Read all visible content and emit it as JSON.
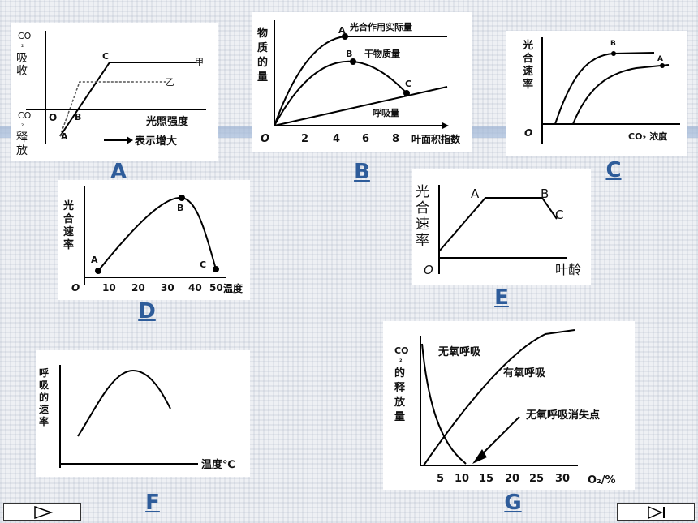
{
  "A": {
    "caption": "A",
    "y_label_top": [
      "CO",
      "₂",
      "吸",
      "收"
    ],
    "y_label_bottom": [
      "CO",
      "₂",
      "释",
      "放"
    ],
    "origin": "O",
    "x_label": "光照强度",
    "point_A": "A",
    "point_B": "B",
    "point_C": "C",
    "series_jia": "甲",
    "series_yi": "乙",
    "legend": "表示增大"
  },
  "B": {
    "caption": "B",
    "y_label": [
      "物",
      "质",
      "的",
      "量"
    ],
    "origin": "O",
    "x_label": "叶面积指数",
    "x_ticks": [
      "2",
      "4",
      "6",
      "8"
    ],
    "point_A": "A",
    "point_B": "B",
    "point_C": "C",
    "label_actual": "光合作用实际量",
    "label_dry": "干物质量",
    "label_resp": "呼吸量"
  },
  "C": {
    "caption": "C",
    "y_label": [
      "光",
      "合",
      "速",
      "率"
    ],
    "origin": "O",
    "x_label": "CO₂ 浓度",
    "point_A": "A",
    "point_B": "B"
  },
  "D": {
    "caption": "D",
    "y_label": [
      "光",
      "合",
      "速",
      "率"
    ],
    "origin": "O",
    "x_label": "温度",
    "x_ticks": [
      "10",
      "20",
      "30",
      "40",
      "50"
    ],
    "point_A": "A",
    "point_B": "B",
    "point_C": "C"
  },
  "E": {
    "caption": "E",
    "y_label": [
      "光",
      "合",
      "速",
      "率"
    ],
    "origin": "O",
    "x_label": "叶龄",
    "point_A": "A",
    "point_B": "B",
    "point_C": "C"
  },
  "F": {
    "caption": "F",
    "y_label": [
      "呼",
      "吸",
      "的",
      "速",
      "率"
    ],
    "x_label": "温度℃"
  },
  "G": {
    "caption": "G",
    "y_label": [
      "CO",
      "₂",
      "的",
      "释",
      "放",
      "量"
    ],
    "x_label": "O₂/%",
    "x_ticks": [
      "5",
      "10",
      "15",
      "20",
      "25",
      "30"
    ],
    "label_anaerobic": "无氧呼吸",
    "label_aerobic": "有氧呼吸",
    "label_vanish": "无氧呼吸消失点"
  },
  "nav": {
    "next_icon": "play-icon",
    "end_icon": "end-icon"
  }
}
